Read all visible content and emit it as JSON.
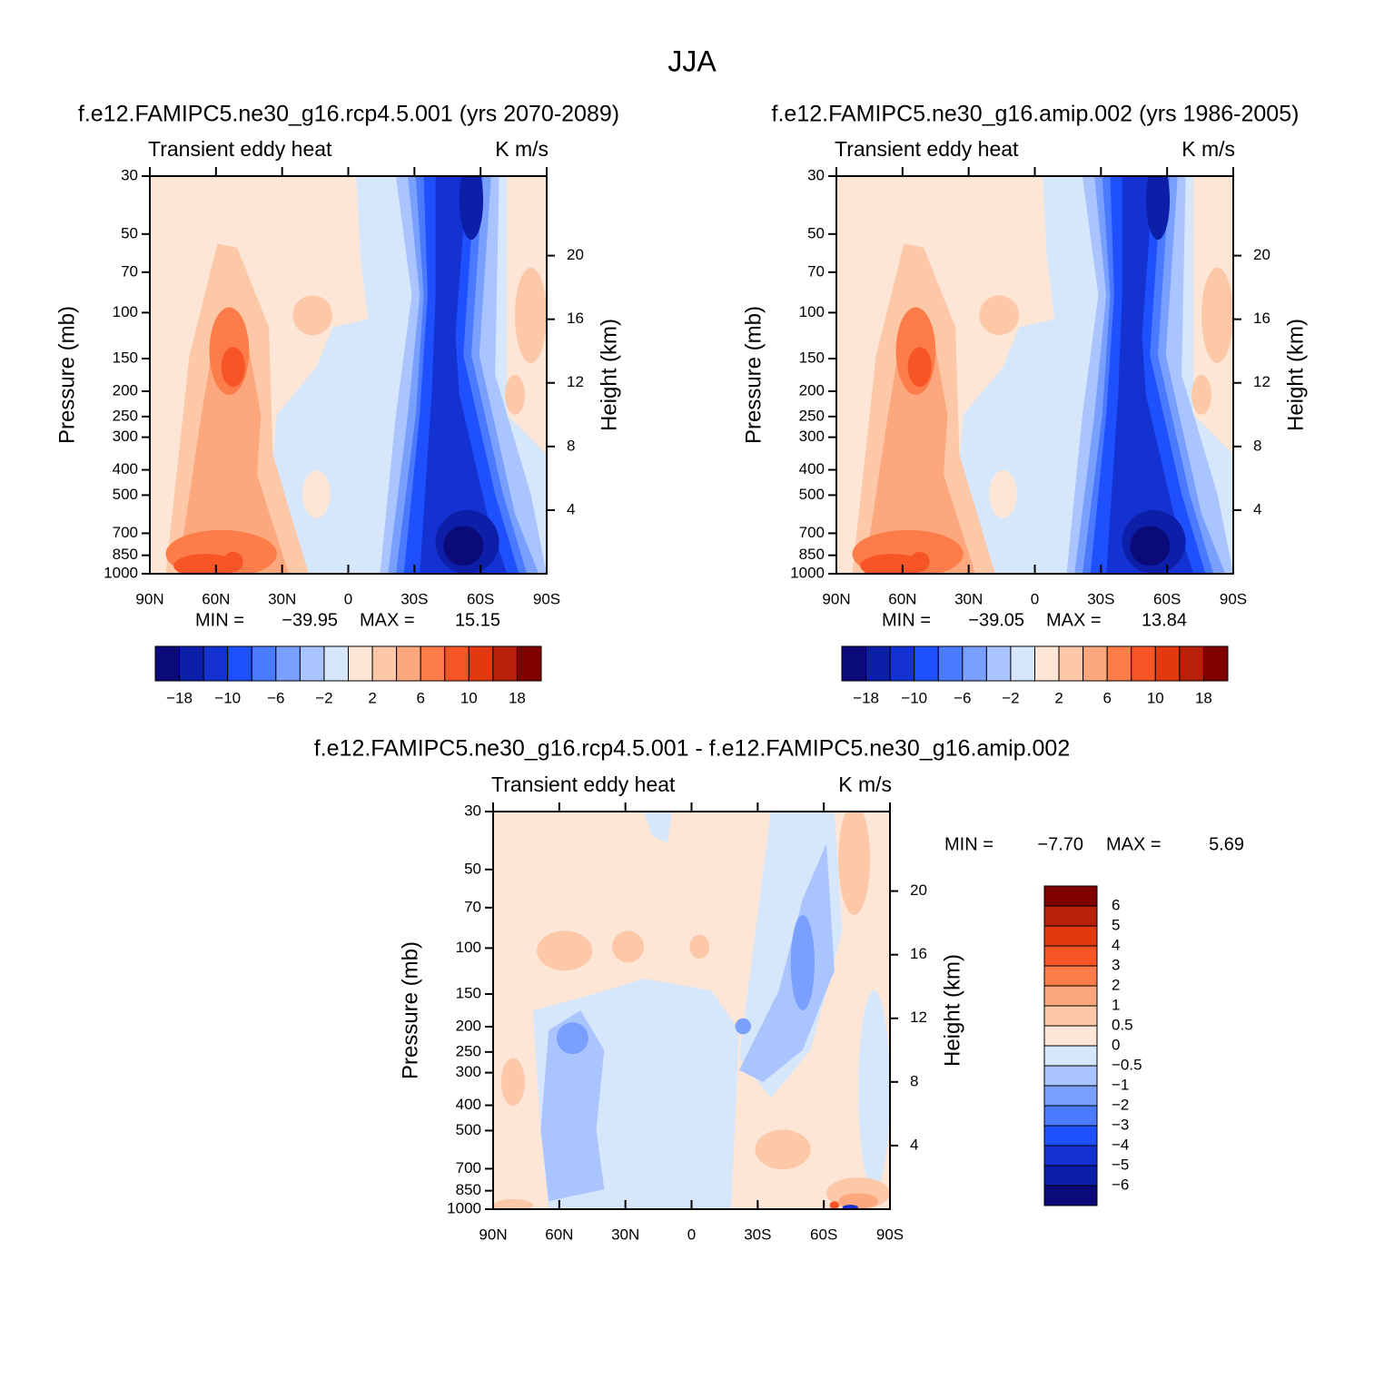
{
  "title": "JJA",
  "chart_data": [
    {
      "type": "contour",
      "title": "f.e12.FAMIPC5.ne30_g16.rcp4.5.001 (yrs 2070-2089)",
      "left_string": "Transient eddy heat",
      "right_string": "K m/s",
      "ylabel": "Pressure (mb)",
      "y2label": "Height (km)",
      "xlim": [
        90,
        -90
      ],
      "xticks": [
        {
          "value": 90,
          "label": "90N"
        },
        {
          "value": 60,
          "label": "60N"
        },
        {
          "value": 30,
          "label": "30N"
        },
        0,
        {
          "value": -30,
          "label": "30S"
        },
        {
          "value": -60,
          "label": "60S"
        },
        {
          "value": -90,
          "label": "90S"
        }
      ],
      "ylim": [
        1000,
        30
      ],
      "ylog": true,
      "yticks": [
        30,
        50,
        70,
        100,
        150,
        200,
        250,
        300,
        400,
        500,
        700,
        850,
        1000
      ],
      "y2lim": [
        0,
        25
      ],
      "y2ticks": [
        4,
        8,
        12,
        16,
        20
      ],
      "min_label": "MIN =",
      "min": {
        "value": -39.95,
        "label": "−39.95"
      },
      "max_label": "MAX =",
      "max": 15.15,
      "colorbar": {
        "orientation": "horizontal",
        "colors": [
          "#0a0a78",
          "#0d1ea8",
          "#1432d2",
          "#1e50ff",
          "#4a7aff",
          "#7aa0ff",
          "#aac4ff",
          "#d6e6fb",
          "#fde6d6",
          "#fcc8a8",
          "#fca77e",
          "#fc7d4a",
          "#f85526",
          "#e23a10",
          "#b82008",
          "#800000"
        ],
        "labels": [
          {
            "value": -18,
            "label": "−18"
          },
          {
            "value": -10,
            "label": "−10"
          },
          {
            "value": -6,
            "label": "−6"
          },
          {
            "value": -2,
            "label": "−2"
          },
          2,
          6,
          10,
          18
        ]
      }
    },
    {
      "type": "contour",
      "title": "f.e12.FAMIPC5.ne30_g16.amip.002 (yrs 1986-2005)",
      "left_string": "Transient eddy heat",
      "right_string": "K m/s",
      "ylabel": "Pressure (mb)",
      "y2label": "Height (km)",
      "xlim": [
        90,
        -90
      ],
      "xticks": [
        {
          "value": 90,
          "label": "90N"
        },
        {
          "value": 60,
          "label": "60N"
        },
        {
          "value": 30,
          "label": "30N"
        },
        0,
        {
          "value": -30,
          "label": "30S"
        },
        {
          "value": -60,
          "label": "60S"
        },
        {
          "value": -90,
          "label": "90S"
        }
      ],
      "ylim": [
        1000,
        30
      ],
      "ylog": true,
      "yticks": [
        30,
        50,
        70,
        100,
        150,
        200,
        250,
        300,
        400,
        500,
        700,
        850,
        1000
      ],
      "y2lim": [
        0,
        25
      ],
      "y2ticks": [
        4,
        8,
        12,
        16,
        20
      ],
      "min_label": "MIN =",
      "min": {
        "value": -39.05,
        "label": "−39.05"
      },
      "max_label": "MAX =",
      "max": 13.84,
      "colorbar": {
        "orientation": "horizontal",
        "colors": [
          "#0a0a78",
          "#0d1ea8",
          "#1432d2",
          "#1e50ff",
          "#4a7aff",
          "#7aa0ff",
          "#aac4ff",
          "#d6e6fb",
          "#fde6d6",
          "#fcc8a8",
          "#fca77e",
          "#fc7d4a",
          "#f85526",
          "#e23a10",
          "#b82008",
          "#800000"
        ],
        "labels": [
          {
            "value": -18,
            "label": "−18"
          },
          {
            "value": -10,
            "label": "−10"
          },
          {
            "value": -6,
            "label": "−6"
          },
          {
            "value": -2,
            "label": "−2"
          },
          2,
          6,
          10,
          18
        ]
      }
    },
    {
      "type": "contour",
      "title": "f.e12.FAMIPC5.ne30_g16.rcp4.5.001 - f.e12.FAMIPC5.ne30_g16.amip.002",
      "left_string": "Transient eddy heat",
      "right_string": "K m/s",
      "ylabel": "Pressure (mb)",
      "y2label": "Height (km)",
      "xlim": [
        90,
        -90
      ],
      "xticks": [
        {
          "value": 90,
          "label": "90N"
        },
        {
          "value": 60,
          "label": "60N"
        },
        {
          "value": 30,
          "label": "30N"
        },
        0,
        {
          "value": -30,
          "label": "30S"
        },
        {
          "value": -60,
          "label": "60S"
        },
        {
          "value": -90,
          "label": "90S"
        }
      ],
      "ylim": [
        1000,
        30
      ],
      "ylog": true,
      "yticks": [
        30,
        50,
        70,
        100,
        150,
        200,
        250,
        300,
        400,
        500,
        700,
        850,
        1000
      ],
      "y2lim": [
        0,
        25
      ],
      "y2ticks": [
        4,
        8,
        12,
        16,
        20
      ],
      "min_label": "MIN =",
      "min": {
        "value": -7.7,
        "label": "−7.70"
      },
      "max_label": "MAX =",
      "max": 5.69,
      "colorbar": {
        "orientation": "vertical",
        "colors": [
          "#0a0a78",
          "#0d1ea8",
          "#1432d2",
          "#1e50ff",
          "#4a7aff",
          "#7aa0ff",
          "#aac4ff",
          "#d6e6fb",
          "#fde6d6",
          "#fcc8a8",
          "#fca77e",
          "#fc7d4a",
          "#f85526",
          "#e23a10",
          "#b82008",
          "#800000"
        ],
        "labels": [
          {
            "value": -6,
            "label": "−6"
          },
          {
            "value": -5,
            "label": "−5"
          },
          {
            "value": -4,
            "label": "−4"
          },
          {
            "value": -3,
            "label": "−3"
          },
          {
            "value": -2,
            "label": "−2"
          },
          {
            "value": -1,
            "label": "−1"
          },
          {
            "value": -0.5,
            "label": "−0.5"
          },
          0,
          0.5,
          1,
          2,
          3,
          4,
          5,
          6
        ]
      }
    }
  ]
}
